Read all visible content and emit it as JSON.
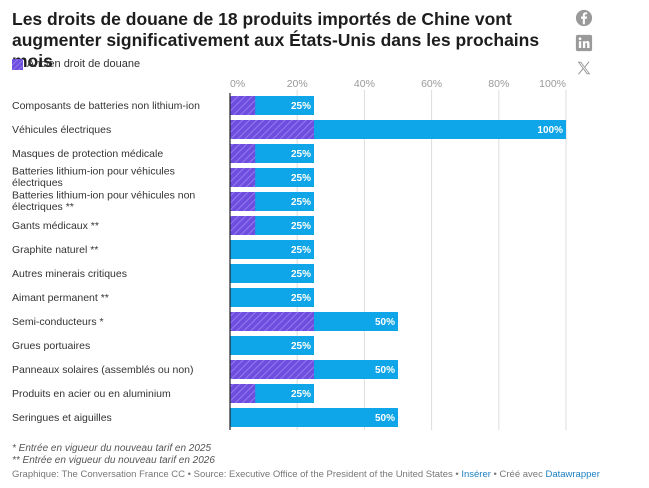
{
  "title": "Les droits de douane de 18 produits importés de Chine vont augmenter significativement aux États-Unis dans les prochains mois",
  "legend": {
    "label": "Ancien droit de douane"
  },
  "colors": {
    "new_bar": "#0ea5e9",
    "old_bar": "#6d4fe0",
    "old_hatch": "#9f7cf0",
    "axis": "#222222",
    "grid": "#dddddd",
    "tick_text": "#999999"
  },
  "social": [
    "facebook-icon",
    "linkedin-icon",
    "x-icon"
  ],
  "chart_data": {
    "type": "bar",
    "orientation": "horizontal",
    "categories": [
      "Composants de batteries non lithium-ion",
      "Véhicules électriques",
      "Masques de protection médicale",
      "Batteries lithium-ion pour véhicules électriques",
      "Batteries lithium-ion pour véhicules non électriques **",
      "Gants médicaux **",
      "Graphite naturel **",
      "Autres minerais critiques",
      "Aimant permanent **",
      "Semi-conducteurs *",
      "Grues portuaires",
      "Panneaux solaires (assemblés ou non)",
      "Produits en acier ou en aluminium",
      "Seringues et aiguilles"
    ],
    "series": [
      {
        "name": "",
        "values": [
          25,
          100,
          25,
          25,
          25,
          25,
          25,
          25,
          25,
          50,
          25,
          50,
          25,
          50
        ]
      },
      {
        "name": "Ancien droit de douane",
        "values": [
          7.5,
          25,
          7.5,
          7.5,
          7.5,
          7.5,
          0,
          0,
          0,
          25,
          0,
          25,
          7.5,
          0
        ]
      }
    ],
    "data_labels": [
      "25%",
      "100%",
      "25%",
      "25%",
      "25%",
      "25%",
      "25%",
      "25%",
      "25%",
      "50%",
      "25%",
      "50%",
      "25%",
      "50%"
    ],
    "x_ticks": [
      "0%",
      "20%",
      "40%",
      "60%",
      "80%",
      "100%"
    ],
    "xlim": [
      0,
      100
    ],
    "grid": true,
    "legend_position": "top-left"
  },
  "notes": [
    "* Entrée en vigueur du nouveau tarif en 2025",
    "** Entrée en vigueur du nouveau tarif en 2026"
  ],
  "credits": {
    "text": "Graphique: The Conversation France CC • Source: Executive Office of the President of the United States • ",
    "insert_link": "Insérer",
    "created_with": " • Créé avec ",
    "tool_link": "Datawrapper"
  }
}
